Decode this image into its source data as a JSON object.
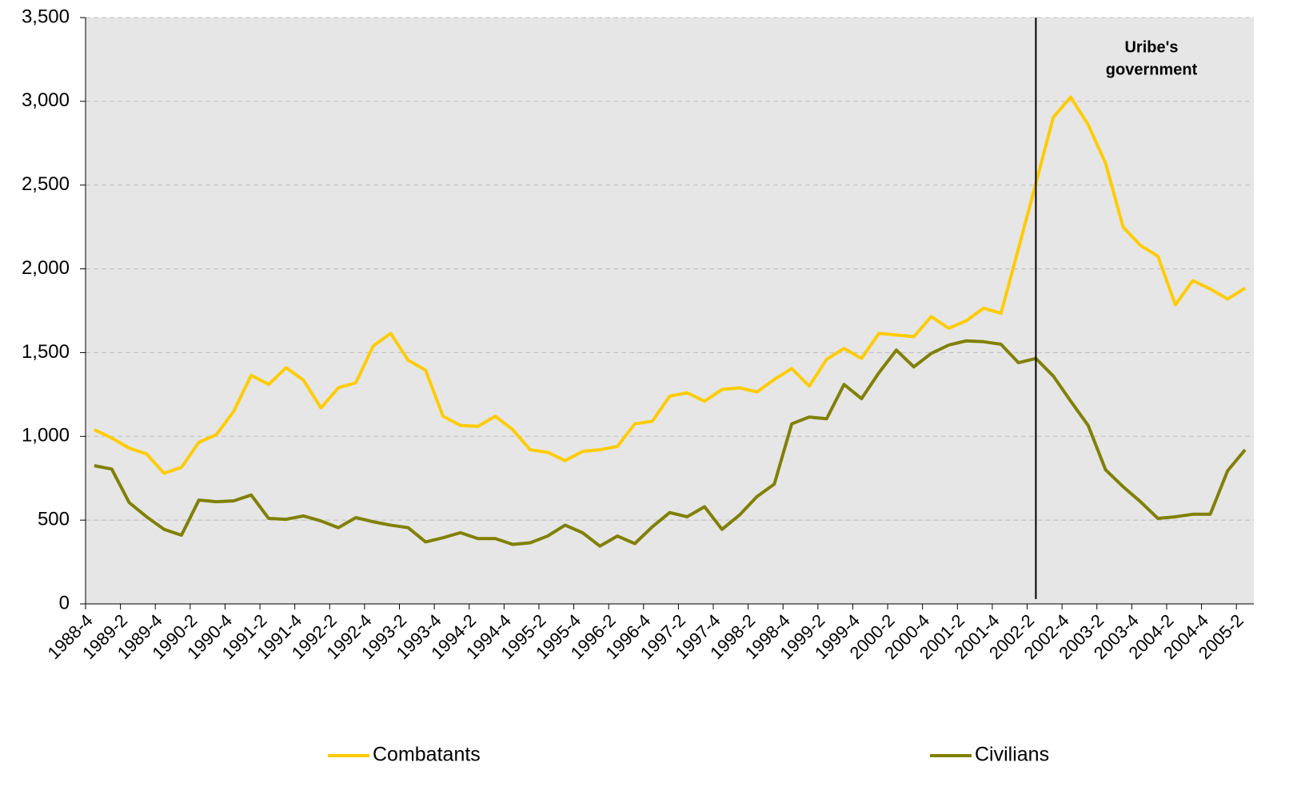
{
  "chart_data": {
    "type": "line",
    "categories": [
      "1988-4",
      null,
      "1989-2",
      null,
      "1989-4",
      null,
      "1990-2",
      null,
      "1990-4",
      null,
      "1991-2",
      null,
      "1991-4",
      null,
      "1992-2",
      null,
      "1992-4",
      null,
      "1993-2",
      null,
      "1993-4",
      null,
      "1994-2",
      null,
      "1994-4",
      null,
      "1995-2",
      null,
      "1995-4",
      null,
      "1996-2",
      null,
      "1996-4",
      null,
      "1997-2",
      null,
      "1997-4",
      null,
      "1998-2",
      null,
      "1998-4",
      null,
      "1999-2",
      null,
      "1999-4",
      null,
      "2000-2",
      null,
      "2000-4",
      null,
      "2001-2",
      null,
      "2001-4",
      null,
      "2002-2",
      null,
      "2002-4",
      null,
      "2003-2",
      null,
      "2003-4",
      null,
      "2004-2",
      null,
      "2004-4",
      null,
      "2005-2"
    ],
    "series": [
      {
        "name": "Combatants",
        "color": "#ffcc00",
        "values": [
          1040,
          990,
          930,
          895,
          780,
          815,
          965,
          1010,
          1150,
          1365,
          1310,
          1410,
          1335,
          1170,
          1290,
          1320,
          1540,
          1615,
          1455,
          1395,
          1120,
          1065,
          1060,
          1120,
          1040,
          920,
          905,
          855,
          910,
          920,
          940,
          1075,
          1090,
          1240,
          1260,
          1210,
          1280,
          1290,
          1265,
          1340,
          1405,
          1300,
          1460,
          1525,
          1465,
          1615,
          1605,
          1595,
          1715,
          1645,
          1690,
          1765,
          1735,
          2120,
          2510,
          2905,
          3025,
          2860,
          2630,
          2250,
          2140,
          2075,
          1785,
          1930,
          1880,
          1820,
          1885
        ]
      },
      {
        "name": "Civilians",
        "color": "#808000",
        "values": [
          825,
          805,
          605,
          520,
          445,
          410,
          620,
          610,
          615,
          650,
          510,
          505,
          525,
          495,
          455,
          515,
          490,
          470,
          455,
          370,
          395,
          425,
          390,
          390,
          355,
          365,
          405,
          470,
          425,
          345,
          405,
          360,
          460,
          545,
          520,
          580,
          445,
          530,
          640,
          715,
          1075,
          1115,
          1105,
          1310,
          1225,
          1380,
          1515,
          1415,
          1495,
          1545,
          1570,
          1565,
          1550,
          1440,
          1465,
          1360,
          1210,
          1065,
          800,
          700,
          610,
          510,
          520,
          535,
          535,
          795,
          920
        ]
      }
    ],
    "ylim": [
      0,
      3500
    ],
    "yticks": [
      0,
      500,
      {
        "value": 1000,
        "label": "1,000"
      },
      {
        "value": 1500,
        "label": "1,500"
      },
      {
        "value": 2000,
        "label": "2,000"
      },
      {
        "value": 2500,
        "label": "2,500"
      },
      {
        "value": 3000,
        "label": "3,000"
      },
      {
        "value": 3500,
        "label": "3,500"
      }
    ],
    "grid": true,
    "annotation": {
      "lines": [
        "Uribe's",
        "government"
      ],
      "x": "2002-2"
    }
  }
}
